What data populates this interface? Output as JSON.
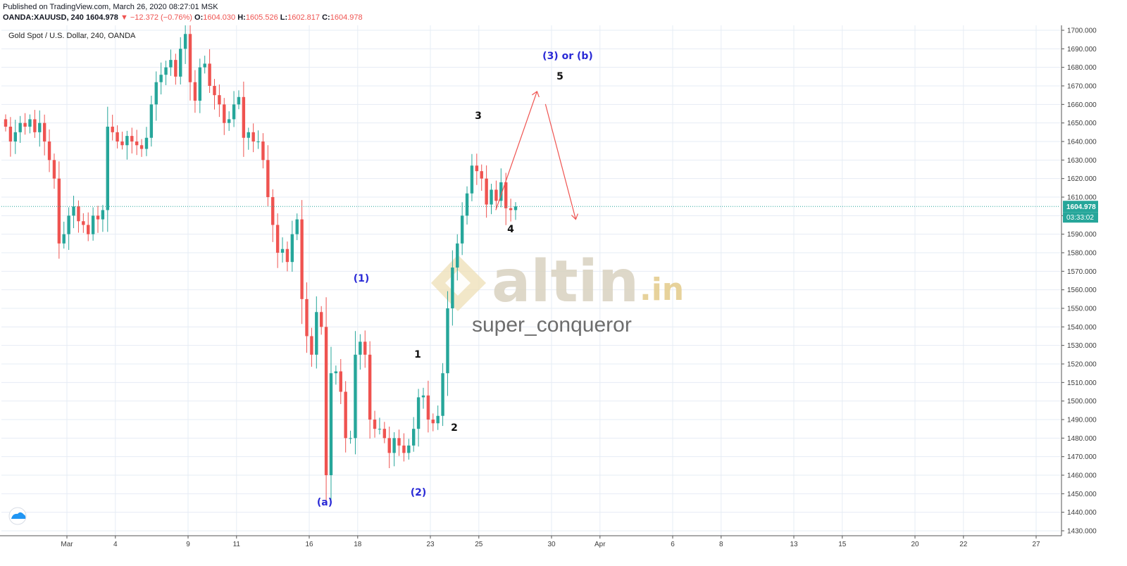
{
  "header": {
    "published": "Published on TradingView.com, March 26, 2020 08:27:01 MSK",
    "symbol": "OANDA:XAUUSD, 240",
    "last": "1604.978",
    "change": "▼ −12.372 (−0.76%)",
    "o_label": "O:",
    "o_value": "1604.030",
    "h_label": "H:",
    "h_value": "1605.526",
    "l_label": "L:",
    "l_value": "1602.817",
    "c_label": "C:",
    "c_value": "1604.978"
  },
  "chart_title": "Gold Spot / U.S. Dollar, 240, OANDA",
  "colors": {
    "up": "#26a69a",
    "down": "#ef5350",
    "grid": "#e6ecf4",
    "price_line": "#26a69a",
    "arrow": "#ef5350",
    "wave_blue": "#2a2ad6"
  },
  "watermark": {
    "brand": "altin",
    "suffix": ".in",
    "author": "super_conqueror"
  },
  "last_price_label": "1604.978",
  "countdown_label": "03:33:02",
  "chart_data": {
    "type": "candlestick",
    "timeframe": "240",
    "y_range": [
      1430,
      1700
    ],
    "y_ticks": [
      1430,
      1440,
      1450,
      1460,
      1470,
      1480,
      1490,
      1500,
      1510,
      1520,
      1530,
      1540,
      1550,
      1560,
      1570,
      1580,
      1590,
      1600,
      1610,
      1620,
      1630,
      1640,
      1650,
      1660,
      1670,
      1680,
      1690,
      1700
    ],
    "y_tick_labels": [
      "1430.000",
      "1440.000",
      "1450.000",
      "1460.000",
      "1470.000",
      "1480.000",
      "1490.000",
      "1500.000",
      "1510.000",
      "1520.000",
      "1530.000",
      "1540.000",
      "1550.000",
      "1560.000",
      "1570.000",
      "1580.000",
      "1590.000",
      "1600.000",
      "1610.000",
      "1620.000",
      "1630.000",
      "1640.000",
      "1650.000",
      "1660.000",
      "1670.000",
      "1680.000",
      "1690.000",
      "1700.000"
    ],
    "date_ticks": [
      {
        "label": "Mar",
        "day": 0
      },
      {
        "label": "4",
        "day": 2
      },
      {
        "label": "9",
        "day": 5
      },
      {
        "label": "11",
        "day": 7
      },
      {
        "label": "16",
        "day": 10
      },
      {
        "label": "18",
        "day": 12
      },
      {
        "label": "23",
        "day": 15
      },
      {
        "label": "25",
        "day": 17
      },
      {
        "label": "30",
        "day": 20
      },
      {
        "label": "Apr",
        "day": 22
      },
      {
        "label": "6",
        "day": 25
      },
      {
        "label": "8",
        "day": 27
      },
      {
        "label": "13",
        "day": 30
      },
      {
        "label": "15",
        "day": 32
      },
      {
        "label": "20",
        "day": 35
      },
      {
        "label": "22",
        "day": 37
      },
      {
        "label": "27",
        "day": 40
      }
    ],
    "closes": [
      1648,
      1640,
      1645,
      1650,
      1648,
      1652,
      1645,
      1650,
      1640,
      1630,
      1620,
      1585,
      1590,
      1600,
      1605,
      1597,
      1595,
      1590,
      1600,
      1598,
      1603,
      1648,
      1645,
      1640,
      1638,
      1643,
      1640,
      1638,
      1636,
      1642,
      1660,
      1672,
      1676,
      1680,
      1684,
      1675,
      1690,
      1698,
      1672,
      1662,
      1680,
      1682,
      1670,
      1665,
      1660,
      1650,
      1652,
      1660,
      1664,
      1642,
      1645,
      1640,
      1640,
      1630,
      1610,
      1595,
      1580,
      1582,
      1575,
      1590,
      1598,
      1555,
      1535,
      1525,
      1548,
      1540,
      1460,
      1515,
      1516,
      1505,
      1480,
      1480,
      1525,
      1532,
      1525,
      1490,
      1485,
      1485,
      1480,
      1472,
      1480,
      1476,
      1472,
      1476,
      1485,
      1502,
      1503,
      1490,
      1488,
      1492,
      1515,
      1550,
      1572,
      1585,
      1600,
      1612,
      1627,
      1624,
      1620,
      1606,
      1614,
      1608,
      1618,
      1604,
      1603,
      1605
    ],
    "price_line": 1604.978,
    "wave_labels": [
      {
        "text": "(a)",
        "color": "blue"
      },
      {
        "text": "(1)",
        "color": "blue"
      },
      {
        "text": "(2)",
        "color": "blue"
      },
      {
        "text": "1",
        "color": "black"
      },
      {
        "text": "2",
        "color": "black"
      },
      {
        "text": "3",
        "color": "black"
      },
      {
        "text": "4",
        "color": "black"
      },
      {
        "text": "5",
        "color": "black"
      },
      {
        "text": "(3) or (b)",
        "color": "blue"
      }
    ],
    "projection": [
      {
        "day": 17.7,
        "price": 1603
      },
      {
        "day": 19.4,
        "price": 1667
      },
      {
        "day": 21.0,
        "price": 1598
      }
    ]
  }
}
